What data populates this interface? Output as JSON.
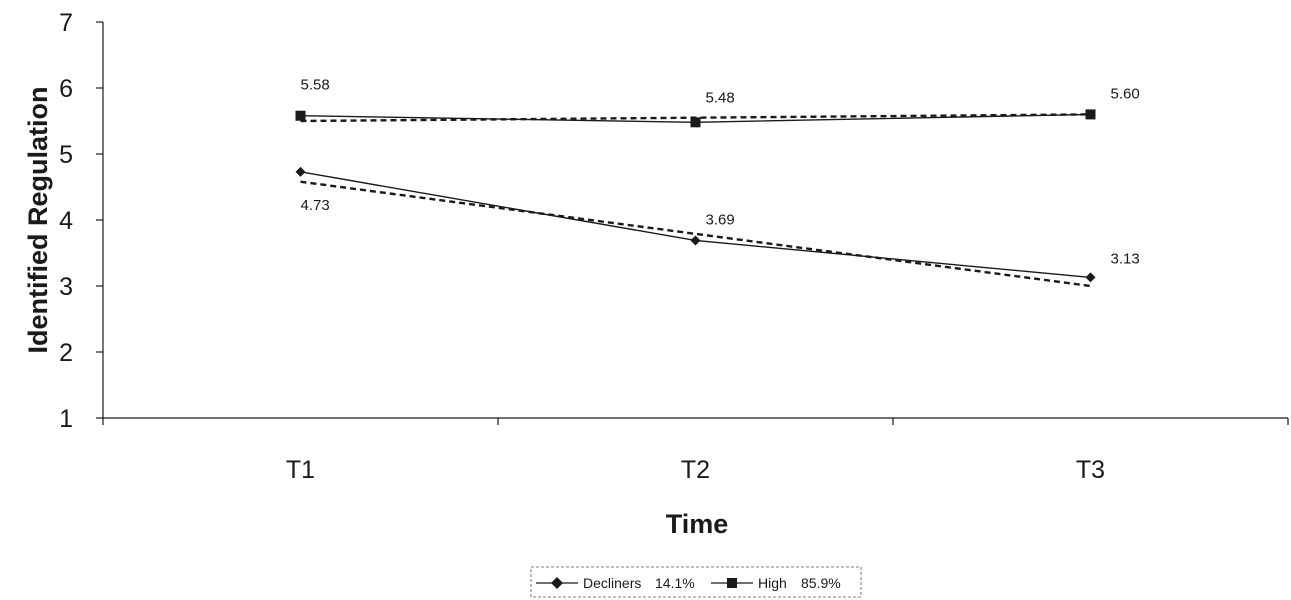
{
  "chart_data": {
    "type": "line",
    "categories": [
      "T1",
      "T2",
      "T3"
    ],
    "xlabel": "Time",
    "ylabel": "Identified Regulation",
    "ylim": [
      1,
      7
    ],
    "yticks": [
      1,
      2,
      3,
      4,
      5,
      6,
      7
    ],
    "grid": false,
    "legend_position": "bottom",
    "series": [
      {
        "name": "Decliners",
        "percent_label": "14.1%",
        "marker": "diamond",
        "values": [
          4.73,
          3.69,
          3.13
        ],
        "data_labels": [
          "4.73",
          "3.69",
          "3.13"
        ],
        "trend_values": [
          4.58,
          3.79,
          3.0
        ]
      },
      {
        "name": "High",
        "percent_label": "85.9%",
        "marker": "square",
        "values": [
          5.58,
          5.48,
          5.6
        ],
        "data_labels": [
          "5.58",
          "5.48",
          "5.60"
        ],
        "trend_values": [
          5.5,
          5.55,
          5.6
        ]
      }
    ],
    "line_color": "#1a1a1a"
  }
}
